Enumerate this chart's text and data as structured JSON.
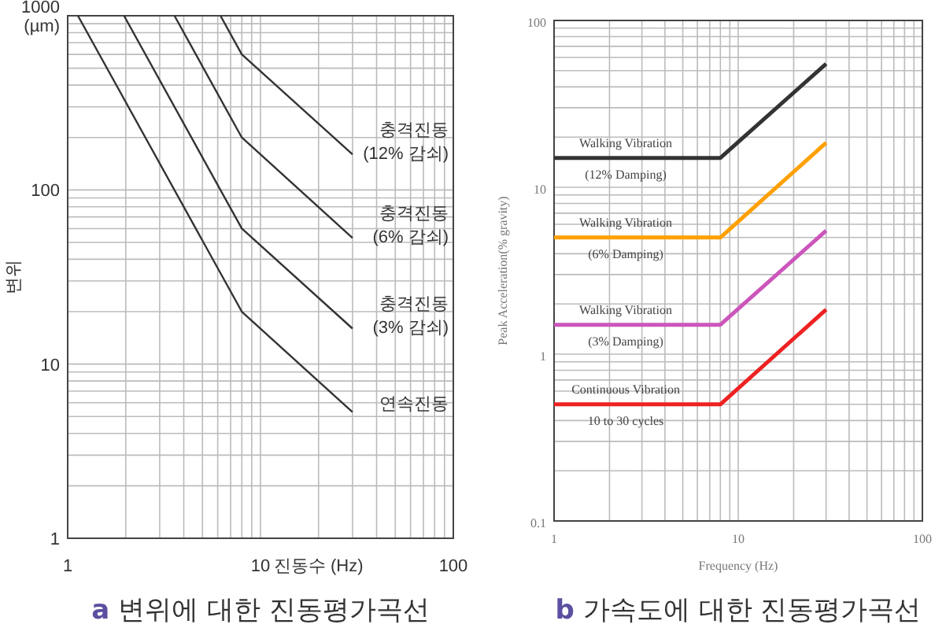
{
  "chart_data": [
    {
      "type": "line",
      "title": "a 변위에 대한 진동평가곡선",
      "xlabel": "진동수 (Hz)",
      "ylabel": "변위",
      "log": "xy",
      "grid": true,
      "xlim": [
        1,
        100
      ],
      "ylim": [
        1,
        1000
      ],
      "xticks": [
        1,
        10,
        100
      ],
      "yticks": [
        1,
        10,
        100,
        {
          "value": 1000,
          "label": "1000\n(µm)"
        }
      ],
      "series": [
        {
          "name": "충격진동\n(12% 감쇠)",
          "color": "#333333",
          "x": [
            6.2,
            8,
            30
          ],
          "values": [
            1000,
            600,
            160
          ]
        },
        {
          "name": "충격진동\n(6% 감쇠)",
          "color": "#333333",
          "x": [
            3.58,
            8,
            30
          ],
          "values": [
            1000,
            200,
            53
          ]
        },
        {
          "name": "충격진동\n(3% 감쇠)",
          "color": "#333333",
          "x": [
            1.96,
            8,
            30
          ],
          "values": [
            1000,
            60,
            16
          ]
        },
        {
          "name": "연속진동",
          "color": "#333333",
          "x": [
            1.13,
            8,
            30
          ],
          "values": [
            1000,
            20,
            5.3
          ]
        }
      ]
    },
    {
      "type": "line",
      "title": "b 가속도에 대한 진동평가곡선",
      "xlabel": "Frequency (Hz)",
      "ylabel": "Peak Acceleration(% gravity)",
      "log": "xy",
      "grid": true,
      "xlim": [
        1,
        100
      ],
      "ylim": [
        0.1,
        100
      ],
      "xticks": [
        1,
        10,
        100
      ],
      "yticks": [
        0.1,
        1,
        10,
        100
      ],
      "series": [
        {
          "name": "Walking Vibration\n(12% Damping)",
          "color": "#333333",
          "x": [
            1,
            8,
            30
          ],
          "values": [
            15,
            15,
            55
          ]
        },
        {
          "name": "Walking Vibration\n(6% Damping)",
          "color": "#ffa000",
          "x": [
            1,
            8,
            30
          ],
          "values": [
            5,
            5,
            18.5
          ]
        },
        {
          "name": "Walking Vibration\n(3% Damping)",
          "color": "#cc55bb",
          "x": [
            1,
            8,
            30
          ],
          "values": [
            1.5,
            1.5,
            5.5
          ]
        },
        {
          "name": "Continuous Vibration\n10 to 30 cycles",
          "color": "#ee2222",
          "x": [
            1,
            8,
            30
          ],
          "values": [
            0.5,
            0.5,
            1.85
          ]
        }
      ]
    }
  ]
}
